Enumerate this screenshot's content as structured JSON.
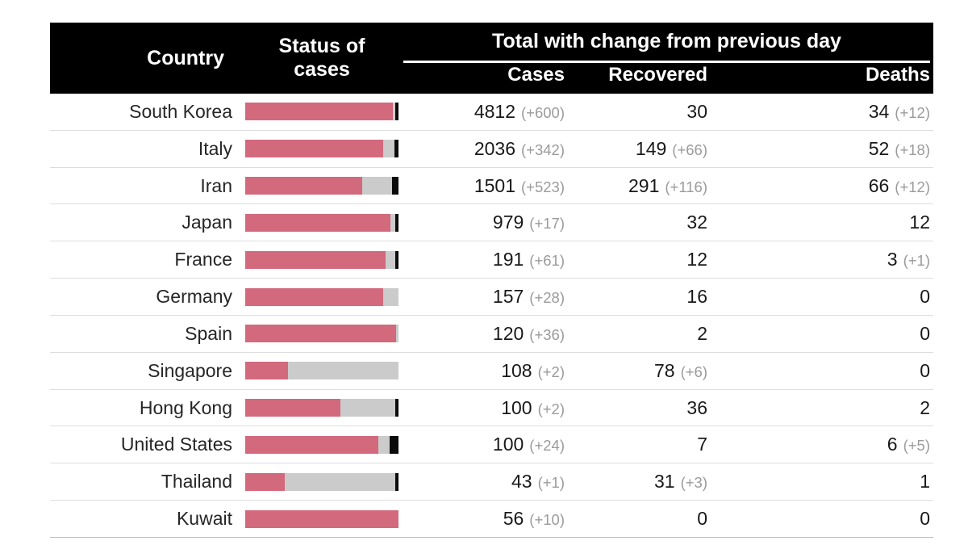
{
  "header": {
    "country": "Country",
    "status_line1": "Status of",
    "status_line2": "cases",
    "total_span": "Total with change from previous day",
    "cases": "Cases",
    "recovered": "Recovered",
    "deaths": "Deaths"
  },
  "colors": {
    "header_bg": "#000000",
    "header_text": "#ffffff",
    "active_bar": "#d2697d",
    "recovered_bar": "#cbcbcb",
    "deaths_bar": "#0b0b0b",
    "value_text": "#191919",
    "change_text": "#9b9b9b",
    "separator": "#dddddd"
  },
  "chart_data": {
    "type": "table",
    "title": "Total with change from previous day",
    "columns": [
      "Country",
      "Status of cases",
      "Cases",
      "Recovered",
      "Deaths"
    ],
    "status_bar": {
      "type": "stacked-bar-100pct",
      "segments": [
        "active",
        "recovered",
        "deaths"
      ],
      "segment_colors": {
        "active": "#d2697d",
        "recovered": "#cbcbcb",
        "deaths": "#0b0b0b"
      },
      "note": "active = cases - recovered - deaths; bar shows shares of total cases"
    },
    "rows": [
      {
        "country": "South Korea",
        "cases": 4812,
        "cases_change": 600,
        "recovered": 30,
        "recovered_change": null,
        "deaths": 34,
        "deaths_change": 12
      },
      {
        "country": "Italy",
        "cases": 2036,
        "cases_change": 342,
        "recovered": 149,
        "recovered_change": 66,
        "deaths": 52,
        "deaths_change": 18
      },
      {
        "country": "Iran",
        "cases": 1501,
        "cases_change": 523,
        "recovered": 291,
        "recovered_change": 116,
        "deaths": 66,
        "deaths_change": 12
      },
      {
        "country": "Japan",
        "cases": 979,
        "cases_change": 17,
        "recovered": 32,
        "recovered_change": null,
        "deaths": 12,
        "deaths_change": null
      },
      {
        "country": "France",
        "cases": 191,
        "cases_change": 61,
        "recovered": 12,
        "recovered_change": null,
        "deaths": 3,
        "deaths_change": 1
      },
      {
        "country": "Germany",
        "cases": 157,
        "cases_change": 28,
        "recovered": 16,
        "recovered_change": null,
        "deaths": 0,
        "deaths_change": null
      },
      {
        "country": "Spain",
        "cases": 120,
        "cases_change": 36,
        "recovered": 2,
        "recovered_change": null,
        "deaths": 0,
        "deaths_change": null
      },
      {
        "country": "Singapore",
        "cases": 108,
        "cases_change": 2,
        "recovered": 78,
        "recovered_change": 6,
        "deaths": 0,
        "deaths_change": null
      },
      {
        "country": "Hong Kong",
        "cases": 100,
        "cases_change": 2,
        "recovered": 36,
        "recovered_change": null,
        "deaths": 2,
        "deaths_change": null
      },
      {
        "country": "United States",
        "cases": 100,
        "cases_change": 24,
        "recovered": 7,
        "recovered_change": null,
        "deaths": 6,
        "deaths_change": 5
      },
      {
        "country": "Thailand",
        "cases": 43,
        "cases_change": 1,
        "recovered": 31,
        "recovered_change": 3,
        "deaths": 1,
        "deaths_change": null
      },
      {
        "country": "Kuwait",
        "cases": 56,
        "cases_change": 10,
        "recovered": 0,
        "recovered_change": null,
        "deaths": 0,
        "deaths_change": null
      }
    ]
  }
}
